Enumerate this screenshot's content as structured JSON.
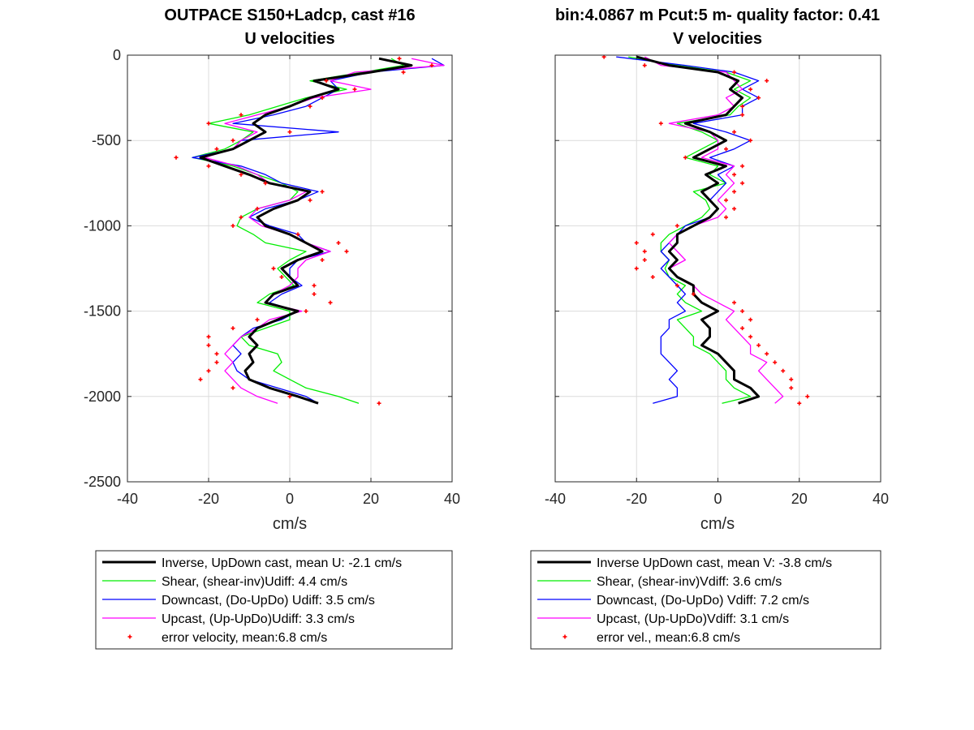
{
  "chart_data": [
    {
      "type": "line",
      "title": "OUTPACE S150+Ladcp, cast #16",
      "subtitle": "U velocities",
      "xlabel": "cm/s",
      "ylabel": "",
      "xlim": [
        -40,
        40
      ],
      "ylim": [
        -2500,
        0
      ],
      "xticks": [
        "-40",
        "-20",
        "0",
        "20",
        "40"
      ],
      "yticks": [
        "0",
        "-500",
        "-1000",
        "-1500",
        "-2000",
        "-2500"
      ],
      "grid": true,
      "legend_position": "below",
      "colors": {
        "inverse": "#000000",
        "shear": "#00ee00",
        "down": "#0000ff",
        "up": "#ff00ff",
        "error": "#ff0000"
      },
      "depths": [
        -20,
        -60,
        -100,
        -150,
        -200,
        -250,
        -300,
        -350,
        -400,
        -450,
        -500,
        -550,
        -600,
        -650,
        -700,
        -750,
        -800,
        -850,
        -900,
        -950,
        -1000,
        -1050,
        -1100,
        -1150,
        -1200,
        -1250,
        -1300,
        -1350,
        -1400,
        -1450,
        -1500,
        -1550,
        -1600,
        -1650,
        -1700,
        -1750,
        -1800,
        -1850,
        -1900,
        -1950,
        -2000,
        -2040
      ],
      "series": [
        {
          "name": "Inverse, UpDown cast, mean U:  -2.1 cm/s",
          "color": "#000000",
          "width": 3,
          "values": [
            22,
            30,
            20,
            6,
            12,
            5,
            0,
            -6,
            -9,
            -6,
            -10,
            -14,
            -22,
            -16,
            -10,
            -5,
            5,
            2,
            -4,
            -8,
            -6,
            0,
            4,
            8,
            2,
            -2,
            0,
            2,
            -4,
            -6,
            2,
            -3,
            -8,
            -10,
            -8,
            -10,
            -9,
            -11,
            -10,
            -5,
            2,
            7
          ]
        },
        {
          "name": "Shear, (shear-inv)Udiff:  4.4 cm/s",
          "color": "#00ee00",
          "width": 1.3,
          "values": [
            25,
            28,
            18,
            5,
            14,
            4,
            -3,
            -10,
            -20,
            -9,
            -12,
            -16,
            -24,
            -14,
            -8,
            -2,
            2,
            0,
            -8,
            -12,
            -13,
            -9,
            -6,
            4,
            0,
            -3,
            -1,
            1,
            -5,
            -8,
            0,
            0,
            -6,
            -12,
            -10,
            -3,
            -2,
            -4,
            0,
            4,
            12,
            17
          ]
        },
        {
          "name": "Downcast, (Do-UpDo) Udiff:  3.5 cm/s",
          "color": "#0000ff",
          "width": 1.3,
          "values": [
            35,
            38,
            20,
            10,
            12,
            8,
            4,
            -4,
            -14,
            12,
            -12,
            -14,
            -24,
            -12,
            -6,
            -2,
            7,
            2,
            -6,
            -10,
            -5,
            2,
            4,
            10,
            2,
            0,
            0,
            3,
            -2,
            -5,
            2,
            -2,
            -9,
            -12,
            -14,
            -12,
            -14,
            -13,
            -10,
            -3,
            4,
            7
          ]
        },
        {
          "name": "Upcast, (Up-UpDo)Udiff:  3.3 cm/s",
          "color": "#ff00ff",
          "width": 1.3,
          "values": [
            30,
            38,
            16,
            10,
            20,
            6,
            0,
            -8,
            -16,
            -8,
            -12,
            -14,
            -21,
            -13,
            -8,
            -5,
            4,
            0,
            -8,
            -10,
            -7,
            0,
            4,
            10,
            4,
            2,
            2,
            0,
            -4,
            -6,
            3,
            -5,
            -8,
            -12,
            -14,
            -16,
            -14,
            -16,
            -14,
            -12,
            -8,
            -3
          ]
        }
      ],
      "error_velocity": {
        "name": "error velocity, mean:6.8 cm/s",
        "values": [
          27,
          35,
          28,
          9,
          16,
          8,
          5,
          -12,
          -20,
          0,
          -14,
          -18,
          -28,
          -20,
          -12,
          -6,
          8,
          5,
          -8,
          -12,
          -14,
          2,
          12,
          14,
          8,
          -4,
          -2,
          6,
          6,
          10,
          4,
          -8,
          -14,
          -20,
          -20,
          -18,
          -18,
          -20,
          -22,
          -14,
          0,
          22
        ]
      }
    },
    {
      "type": "line",
      "title": "bin:4.0867 m  Pcut:5 m- quality factor:  0.41",
      "subtitle": "V velocities",
      "xlabel": "cm/s",
      "ylabel": "",
      "xlim": [
        -40,
        40
      ],
      "ylim": [
        -2500,
        0
      ],
      "xticks": [
        "-40",
        "-20",
        "0",
        "20",
        "40"
      ],
      "yticks": [],
      "grid": true,
      "legend_position": "below",
      "colors": {
        "inverse": "#000000",
        "shear": "#00ee00",
        "down": "#0000ff",
        "up": "#ff00ff",
        "error": "#ff0000"
      },
      "depths": [
        -10,
        -60,
        -100,
        -150,
        -200,
        -250,
        -300,
        -350,
        -400,
        -450,
        -500,
        -550,
        -600,
        -650,
        -700,
        -750,
        -800,
        -850,
        -900,
        -950,
        -1000,
        -1050,
        -1100,
        -1150,
        -1200,
        -1250,
        -1300,
        -1350,
        -1400,
        -1450,
        -1500,
        -1550,
        -1600,
        -1650,
        -1700,
        -1750,
        -1800,
        -1850,
        -1900,
        -1950,
        -2000,
        -2040
      ],
      "series": [
        {
          "name": "Inverse UpDown cast, mean V:  -3.8 cm/s",
          "color": "#000000",
          "width": 3,
          "values": [
            -20,
            -12,
            0,
            5,
            3,
            6,
            4,
            2,
            -8,
            -2,
            2,
            -2,
            -6,
            2,
            -3,
            0,
            -4,
            -2,
            0,
            -2,
            -6,
            -10,
            -10,
            -12,
            -10,
            -12,
            -10,
            -6,
            -6,
            -4,
            0,
            -4,
            -2,
            -2,
            -4,
            0,
            2,
            4,
            4,
            8,
            10,
            5
          ]
        },
        {
          "name": "Shear, (shear-inv)Vdiff:  3.6 cm/s",
          "color": "#00ee00",
          "width": 1.3,
          "values": [
            -22,
            -10,
            2,
            8,
            4,
            8,
            5,
            3,
            -10,
            -4,
            0,
            -4,
            -8,
            0,
            -2,
            2,
            -6,
            -3,
            -2,
            -4,
            -8,
            -12,
            -14,
            -14,
            -12,
            -13,
            -12,
            -8,
            -10,
            -8,
            -4,
            -10,
            -8,
            -6,
            -6,
            -2,
            0,
            2,
            2,
            4,
            8,
            1
          ]
        },
        {
          "name": "Downcast, (Do-UpDo) Vdiff:  7.2 cm/s",
          "color": "#0000ff",
          "width": 1.3,
          "values": [
            -25,
            -8,
            4,
            10,
            6,
            10,
            6,
            6,
            -6,
            2,
            8,
            4,
            -2,
            4,
            0,
            2,
            0,
            -2,
            0,
            -2,
            -8,
            -10,
            -12,
            -14,
            -12,
            -14,
            -12,
            -10,
            -8,
            -10,
            -8,
            -12,
            -12,
            -14,
            -14,
            -14,
            -12,
            -10,
            -12,
            -10,
            -10,
            -16
          ]
        },
        {
          "name": "Upcast, (Up-UpDo)Vdiff:  3.1 cm/s",
          "color": "#ff00ff",
          "width": 1.3,
          "values": [
            -18,
            -14,
            2,
            4,
            6,
            2,
            4,
            0,
            -12,
            -2,
            0,
            0,
            -4,
            4,
            2,
            4,
            2,
            0,
            2,
            0,
            -6,
            -10,
            -12,
            -10,
            -8,
            -12,
            -10,
            -6,
            -4,
            0,
            4,
            2,
            4,
            6,
            8,
            8,
            12,
            10,
            12,
            14,
            16,
            14
          ]
        }
      ],
      "error_velocity": {
        "name": "error vel., mean:6.8 cm/s",
        "values": [
          -28,
          -18,
          4,
          12,
          8,
          10,
          6,
          6,
          -14,
          4,
          8,
          2,
          -8,
          6,
          4,
          6,
          4,
          2,
          4,
          2,
          -10,
          -16,
          -20,
          -18,
          -18,
          -20,
          -16,
          -10,
          -6,
          4,
          6,
          8,
          6,
          8,
          10,
          12,
          14,
          16,
          18,
          18,
          22,
          20
        ]
      }
    }
  ]
}
